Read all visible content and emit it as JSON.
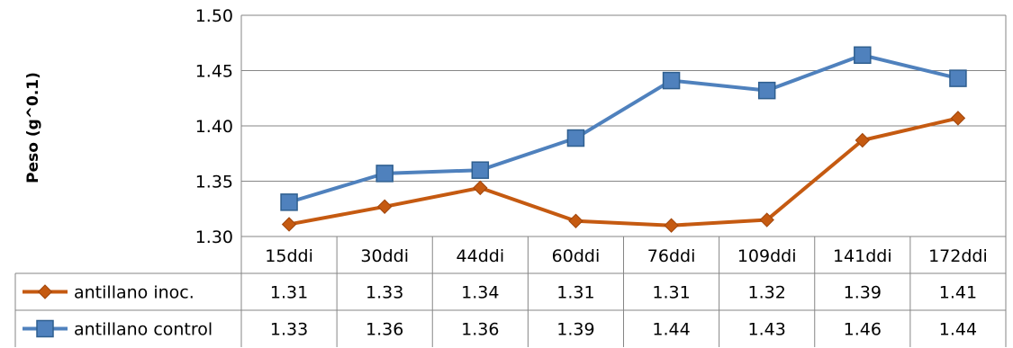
{
  "chart_data": {
    "type": "line",
    "title": "",
    "xlabel": "",
    "ylabel": "Peso (g^0.1)",
    "ylim": [
      1.3,
      1.5
    ],
    "yticks": [
      "1.30",
      "1.35",
      "1.40",
      "1.45",
      "1.50"
    ],
    "categories": [
      "15ddi",
      "30ddi",
      "44ddi",
      "60ddi",
      "76ddi",
      "109ddi",
      "141ddi",
      "172ddi"
    ],
    "grid": true,
    "legend": "data-table",
    "series": [
      {
        "name": "antillano inoc.",
        "values": [
          1.311,
          1.327,
          1.344,
          1.314,
          1.31,
          1.315,
          1.387,
          1.407
        ],
        "labels": [
          "1.31",
          "1.33",
          "1.34",
          "1.31",
          "1.31",
          "1.32",
          "1.39",
          "1.41"
        ],
        "color": "#C55A11",
        "marker": "diamond"
      },
      {
        "name": "antillano control",
        "values": [
          1.331,
          1.357,
          1.36,
          1.389,
          1.441,
          1.432,
          1.464,
          1.443
        ],
        "labels": [
          "1.33",
          "1.36",
          "1.36",
          "1.39",
          "1.44",
          "1.43",
          "1.46",
          "1.44"
        ],
        "color": "#4F81BD",
        "marker": "square"
      }
    ]
  }
}
